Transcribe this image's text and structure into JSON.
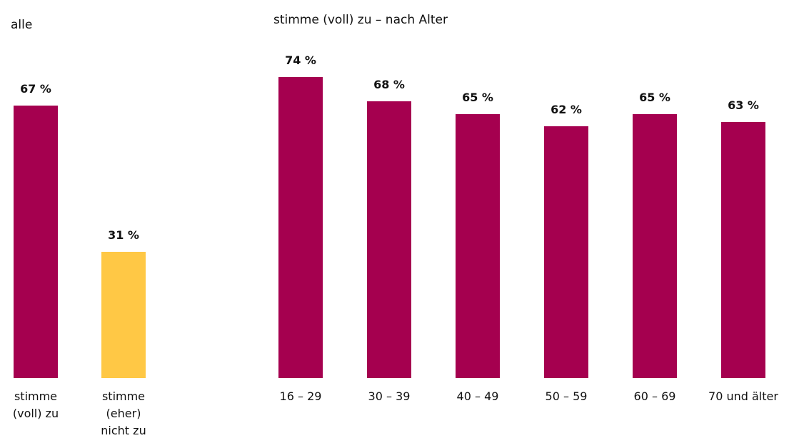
{
  "chart_data": [
    {
      "type": "bar",
      "title": "alle",
      "categories": [
        "stimme (voll) zu",
        "stimme (eher) nicht zu"
      ],
      "values": [
        67,
        31
      ],
      "value_labels": [
        "67 %",
        "31 %"
      ],
      "colors": [
        "#a5004f",
        "#ffc845"
      ]
    },
    {
      "type": "bar",
      "title": "stimme (voll) zu – nach Alter",
      "categories": [
        "16 – 29",
        "30 – 39",
        "40 – 49",
        "50 – 59",
        "60 – 69",
        "70 und älter"
      ],
      "values": [
        74,
        68,
        65,
        62,
        65,
        63
      ],
      "value_labels": [
        "74 %",
        "68 %",
        "65 %",
        "62 %",
        "65 %",
        "63 %"
      ],
      "color": "#a5004f"
    }
  ]
}
